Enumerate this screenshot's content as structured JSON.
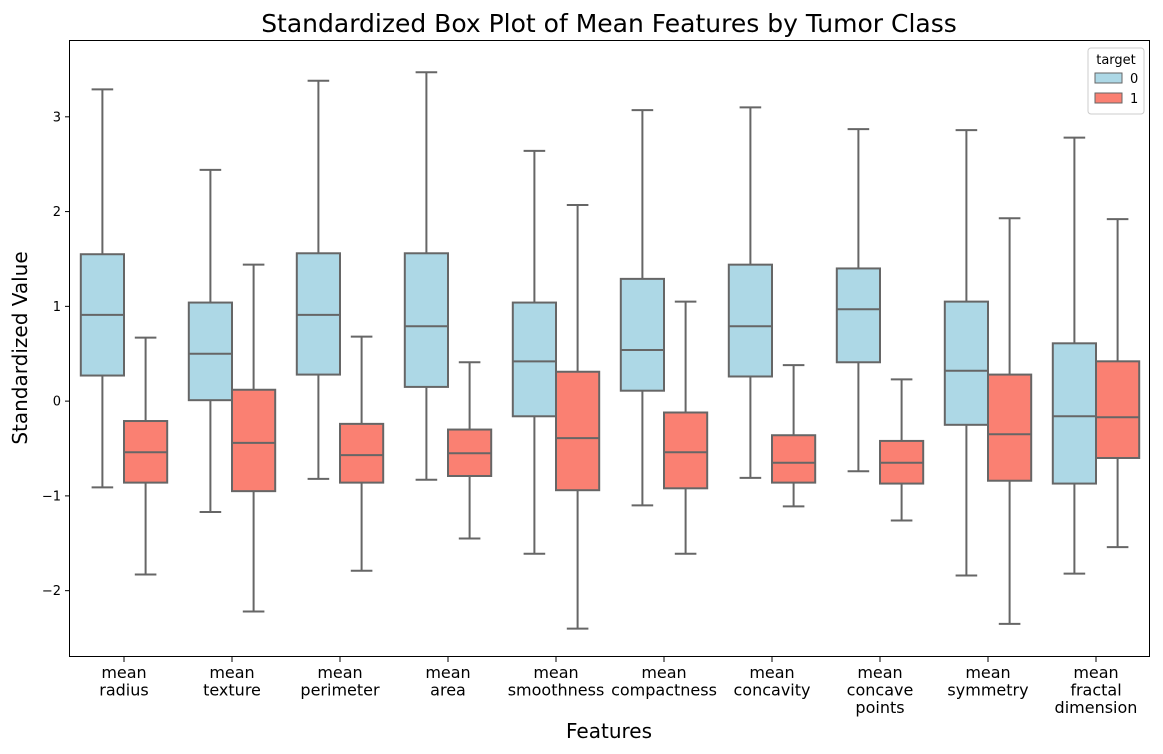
{
  "chart_data": {
    "type": "box",
    "title": "Standardized Box Plot of Mean Features by Tumor Class",
    "xlabel": "Features",
    "ylabel": "Standardized Value",
    "ylim": [
      -2.7,
      3.8
    ],
    "yticks": [
      -2,
      -1,
      0,
      1,
      2,
      3
    ],
    "ytick_labels": [
      "−2",
      "−1",
      "0",
      "1",
      "2",
      "3"
    ],
    "categories": [
      [
        "mean",
        "radius"
      ],
      [
        "mean",
        "texture"
      ],
      [
        "mean",
        "perimeter"
      ],
      [
        "mean",
        "area"
      ],
      [
        "mean",
        "smoothness"
      ],
      [
        "mean",
        "compactness"
      ],
      [
        "mean",
        "concavity"
      ],
      [
        "mean",
        "concave",
        "points"
      ],
      [
        "mean",
        "symmetry"
      ],
      [
        "mean",
        "fractal",
        "dimension"
      ]
    ],
    "legend": {
      "title": "target",
      "position": "top-right",
      "entries": [
        "0",
        "1"
      ]
    },
    "series": [
      {
        "name": "0",
        "color": "#add8e6",
        "boxes": [
          {
            "whislo": -0.91,
            "q1": 0.27,
            "med": 0.91,
            "q3": 1.55,
            "whishi": 3.29
          },
          {
            "whislo": -1.17,
            "q1": 0.01,
            "med": 0.5,
            "q3": 1.04,
            "whishi": 2.44
          },
          {
            "whislo": -0.82,
            "q1": 0.28,
            "med": 0.91,
            "q3": 1.56,
            "whishi": 3.38
          },
          {
            "whislo": -0.83,
            "q1": 0.15,
            "med": 0.79,
            "q3": 1.56,
            "whishi": 3.47
          },
          {
            "whislo": -1.61,
            "q1": -0.16,
            "med": 0.42,
            "q3": 1.04,
            "whishi": 2.64
          },
          {
            "whislo": -1.1,
            "q1": 0.11,
            "med": 0.54,
            "q3": 1.29,
            "whishi": 3.07
          },
          {
            "whislo": -0.81,
            "q1": 0.26,
            "med": 0.79,
            "q3": 1.44,
            "whishi": 3.1
          },
          {
            "whislo": -0.74,
            "q1": 0.41,
            "med": 0.97,
            "q3": 1.4,
            "whishi": 2.87
          },
          {
            "whislo": -1.84,
            "q1": -0.25,
            "med": 0.32,
            "q3": 1.05,
            "whishi": 2.86
          },
          {
            "whislo": -1.82,
            "q1": -0.87,
            "med": -0.16,
            "q3": 0.61,
            "whishi": 2.78
          }
        ]
      },
      {
        "name": "1",
        "color": "#fa8072",
        "boxes": [
          {
            "whislo": -1.83,
            "q1": -0.86,
            "med": -0.54,
            "q3": -0.21,
            "whishi": 0.67
          },
          {
            "whislo": -2.22,
            "q1": -0.95,
            "med": -0.44,
            "q3": 0.12,
            "whishi": 1.44
          },
          {
            "whislo": -1.79,
            "q1": -0.86,
            "med": -0.57,
            "q3": -0.24,
            "whishi": 0.68
          },
          {
            "whislo": -1.45,
            "q1": -0.79,
            "med": -0.55,
            "q3": -0.3,
            "whishi": 0.41
          },
          {
            "whislo": -2.4,
            "q1": -0.94,
            "med": -0.39,
            "q3": 0.31,
            "whishi": 2.07
          },
          {
            "whislo": -1.61,
            "q1": -0.92,
            "med": -0.54,
            "q3": -0.12,
            "whishi": 1.05
          },
          {
            "whislo": -1.11,
            "q1": -0.86,
            "med": -0.65,
            "q3": -0.36,
            "whishi": 0.38
          },
          {
            "whislo": -1.26,
            "q1": -0.87,
            "med": -0.65,
            "q3": -0.42,
            "whishi": 0.23
          },
          {
            "whislo": -2.35,
            "q1": -0.84,
            "med": -0.35,
            "q3": 0.28,
            "whishi": 1.93
          },
          {
            "whislo": -1.54,
            "q1": -0.6,
            "med": -0.17,
            "q3": 0.42,
            "whishi": 1.92
          }
        ]
      }
    ],
    "grid": false,
    "line_color": "#666666"
  }
}
